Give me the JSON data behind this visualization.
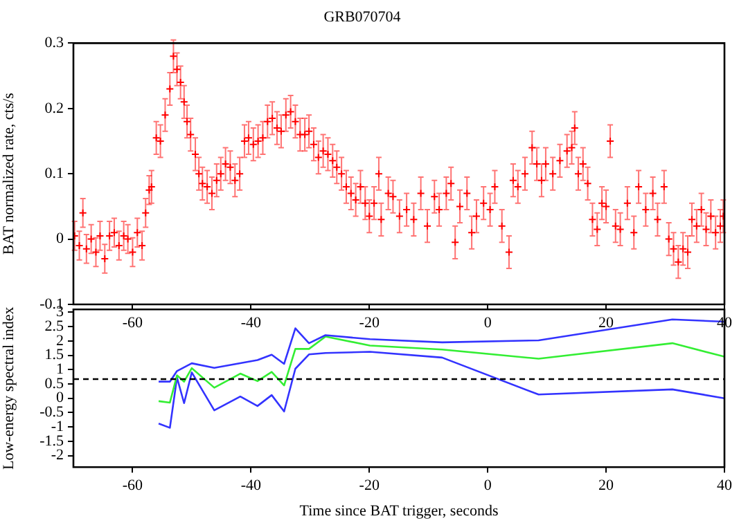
{
  "chart_data": [
    {
      "type": "scatter",
      "title": "GRB070704",
      "ylabel": "BAT normalized rate, cts/s",
      "xlim": [
        -70,
        40
      ],
      "xticks": [
        -60,
        -40,
        -20,
        0,
        20,
        40
      ],
      "ylim": [
        -0.1,
        0.3
      ],
      "yticks": [
        -0.1,
        0,
        0.1,
        0.2,
        0.3
      ],
      "grid": false,
      "legend": false,
      "marker": "cross",
      "series": [
        {
          "color": "#ff0000",
          "x": [
            -69.8,
            -69.0,
            -68.4,
            -67.8,
            -67.0,
            -66.2,
            -65.5,
            -64.7,
            -63.9,
            -63.1,
            -62.3,
            -61.5,
            -60.8,
            -60.0,
            -59.2,
            -58.4,
            -57.8,
            -57.2,
            -56.8,
            -56.0,
            -55.3,
            -54.5,
            -53.7,
            -53.1,
            -52.5,
            -51.9,
            -51.3,
            -50.8,
            -50.2,
            -49.4,
            -48.8,
            -48.2,
            -47.4,
            -46.6,
            -45.8,
            -45.1,
            -44.3,
            -43.5,
            -42.7,
            -41.9,
            -41.1,
            -40.4,
            -39.6,
            -38.8,
            -38.0,
            -37.2,
            -36.4,
            -35.6,
            -34.9,
            -34.1,
            -33.3,
            -32.5,
            -31.7,
            -30.9,
            -30.2,
            -29.4,
            -28.6,
            -27.8,
            -27.0,
            -26.2,
            -25.5,
            -24.7,
            -23.9,
            -23.1,
            -22.3,
            -21.5,
            -20.7,
            -20.0,
            -19.2,
            -18.4,
            -18.0,
            -16.8,
            -16.0,
            -14.9,
            -13.7,
            -12.5,
            -11.3,
            -10.2,
            -9.0,
            -8.2,
            -7.0,
            -6.2,
            -5.5,
            -4.7,
            -3.5,
            -2.7,
            -1.9,
            -0.7,
            0.4,
            1.2,
            2.4,
            3.6,
            4.3,
            5.1,
            6.3,
            7.5,
            8.3,
            9.1,
            9.8,
            11.0,
            12.2,
            13.4,
            14.2,
            14.7,
            15.3,
            16.1,
            16.9,
            17.7,
            18.5,
            19.3,
            20.0,
            20.7,
            21.6,
            22.4,
            23.6,
            24.7,
            25.5,
            26.7,
            27.9,
            28.7,
            29.8,
            30.6,
            31.4,
            32.2,
            33.0,
            33.8,
            34.5,
            35.3,
            36.1,
            36.9,
            37.7,
            38.5,
            39.3,
            39.8
          ],
          "values": [
            0.005,
            -0.01,
            0.04,
            -0.015,
            0.0,
            -0.02,
            0.005,
            -0.03,
            0.005,
            0.01,
            -0.01,
            0.005,
            0.0,
            -0.02,
            0.01,
            -0.01,
            0.04,
            0.075,
            0.08,
            0.155,
            0.15,
            0.19,
            0.23,
            0.28,
            0.26,
            0.24,
            0.21,
            0.18,
            0.16,
            0.13,
            0.1,
            0.085,
            0.08,
            0.07,
            0.09,
            0.1,
            0.115,
            0.11,
            0.09,
            0.1,
            0.15,
            0.155,
            0.145,
            0.15,
            0.155,
            0.18,
            0.185,
            0.17,
            0.165,
            0.19,
            0.195,
            0.18,
            0.16,
            0.16,
            0.165,
            0.145,
            0.125,
            0.135,
            0.13,
            0.12,
            0.11,
            0.1,
            0.08,
            0.07,
            0.06,
            0.08,
            0.055,
            0.035,
            0.055,
            0.1,
            0.03,
            0.07,
            0.065,
            0.035,
            0.045,
            0.03,
            0.07,
            0.02,
            0.065,
            0.045,
            0.07,
            0.085,
            -0.005,
            0.05,
            0.07,
            0.01,
            0.035,
            0.055,
            0.045,
            0.08,
            0.02,
            -0.02,
            0.09,
            0.08,
            0.1,
            0.14,
            0.115,
            0.09,
            0.115,
            0.1,
            0.12,
            0.135,
            0.14,
            0.17,
            0.1,
            0.115,
            0.085,
            0.03,
            0.015,
            0.055,
            0.05,
            0.15,
            0.02,
            0.015,
            0.055,
            0.01,
            0.08,
            0.045,
            0.07,
            0.03,
            0.08,
            0.0,
            -0.015,
            -0.035,
            -0.015,
            -0.02,
            0.03,
            0.02,
            0.045,
            0.015,
            0.035,
            0.01,
            0.02,
            0.035
          ],
          "errors": [
            0.022,
            0.022,
            0.022,
            0.022,
            0.022,
            0.022,
            0.022,
            0.022,
            0.022,
            0.022,
            0.022,
            0.022,
            0.022,
            0.022,
            0.022,
            0.022,
            0.022,
            0.022,
            0.025,
            0.025,
            0.025,
            0.025,
            0.025,
            0.025,
            0.025,
            0.025,
            0.025,
            0.025,
            0.025,
            0.025,
            0.025,
            0.025,
            0.025,
            0.025,
            0.025,
            0.025,
            0.025,
            0.025,
            0.025,
            0.025,
            0.025,
            0.025,
            0.025,
            0.025,
            0.025,
            0.025,
            0.025,
            0.025,
            0.025,
            0.025,
            0.025,
            0.025,
            0.025,
            0.025,
            0.025,
            0.025,
            0.025,
            0.025,
            0.025,
            0.025,
            0.025,
            0.025,
            0.025,
            0.025,
            0.025,
            0.025,
            0.025,
            0.025,
            0.025,
            0.025,
            0.025,
            0.025,
            0.025,
            0.025,
            0.025,
            0.025,
            0.025,
            0.025,
            0.025,
            0.025,
            0.025,
            0.025,
            0.025,
            0.025,
            0.025,
            0.025,
            0.025,
            0.025,
            0.025,
            0.025,
            0.025,
            0.025,
            0.025,
            0.025,
            0.025,
            0.025,
            0.025,
            0.025,
            0.025,
            0.025,
            0.025,
            0.025,
            0.025,
            0.025,
            0.025,
            0.025,
            0.025,
            0.025,
            0.025,
            0.025,
            0.025,
            0.025,
            0.025,
            0.025,
            0.025,
            0.025,
            0.025,
            0.025,
            0.025,
            0.025,
            0.025,
            0.025,
            0.025,
            0.025,
            0.025,
            0.025,
            0.025,
            0.025,
            0.025,
            0.025,
            0.025,
            0.025,
            0.025,
            0.025
          ]
        }
      ]
    },
    {
      "type": "line",
      "xlabel": "Time since BAT trigger, seconds",
      "ylabel": "Low-energy spectral index",
      "xlim": [
        -70,
        40
      ],
      "xticks": [
        -60,
        -40,
        -20,
        0,
        20,
        40
      ],
      "ylim": [
        -2.4,
        3.1
      ],
      "yticks": [
        -2,
        -1.5,
        -1,
        -0.5,
        0,
        0.5,
        1,
        1.5,
        2,
        2.5,
        3
      ],
      "grid": false,
      "legend": false,
      "marker": "none",
      "line_style": "solid",
      "ref_lines": [
        {
          "axis": "y",
          "value": 0.67,
          "color": "#000000",
          "line_style": "dashed"
        }
      ],
      "series": [
        {
          "color": "#3333ff",
          "x": [
            -55.6,
            -53.7,
            -52.5,
            -50.0,
            -46.2,
            -38.9,
            -36.5,
            -34.4,
            -32.5,
            -30.2,
            -27.4,
            -19.9,
            -7.7,
            8.6,
            31.2,
            40
          ],
          "values": [
            0.58,
            0.58,
            0.95,
            1.22,
            1.06,
            1.33,
            1.52,
            1.2,
            2.44,
            1.92,
            2.2,
            2.06,
            1.95,
            2.02,
            2.75,
            2.67
          ]
        },
        {
          "color": "#33ee33",
          "x": [
            -55.6,
            -53.7,
            -52.5,
            -51.3,
            -50.0,
            -46.2,
            -41.8,
            -38.9,
            -36.5,
            -34.4,
            -32.5,
            -30.2,
            -27.4,
            -19.9,
            -7.7,
            8.6,
            31.2,
            40
          ],
          "values": [
            -0.1,
            -0.15,
            0.8,
            0.58,
            1.05,
            0.37,
            0.86,
            0.6,
            0.92,
            0.45,
            1.72,
            1.72,
            2.15,
            1.84,
            1.7,
            1.38,
            1.92,
            1.45
          ]
        },
        {
          "color": "#3333ff",
          "x": [
            -55.6,
            -53.7,
            -52.5,
            -51.3,
            -50.0,
            -46.2,
            -41.8,
            -38.9,
            -36.5,
            -34.4,
            -32.5,
            -30.2,
            -27.4,
            -19.9,
            -7.7,
            8.6,
            31.2,
            40
          ],
          "values": [
            -0.88,
            -1.03,
            0.72,
            -0.17,
            0.9,
            -0.42,
            0.06,
            -0.27,
            0.11,
            -0.46,
            1.03,
            1.53,
            1.58,
            1.62,
            1.42,
            0.13,
            0.31,
            0.0
          ]
        }
      ]
    }
  ]
}
